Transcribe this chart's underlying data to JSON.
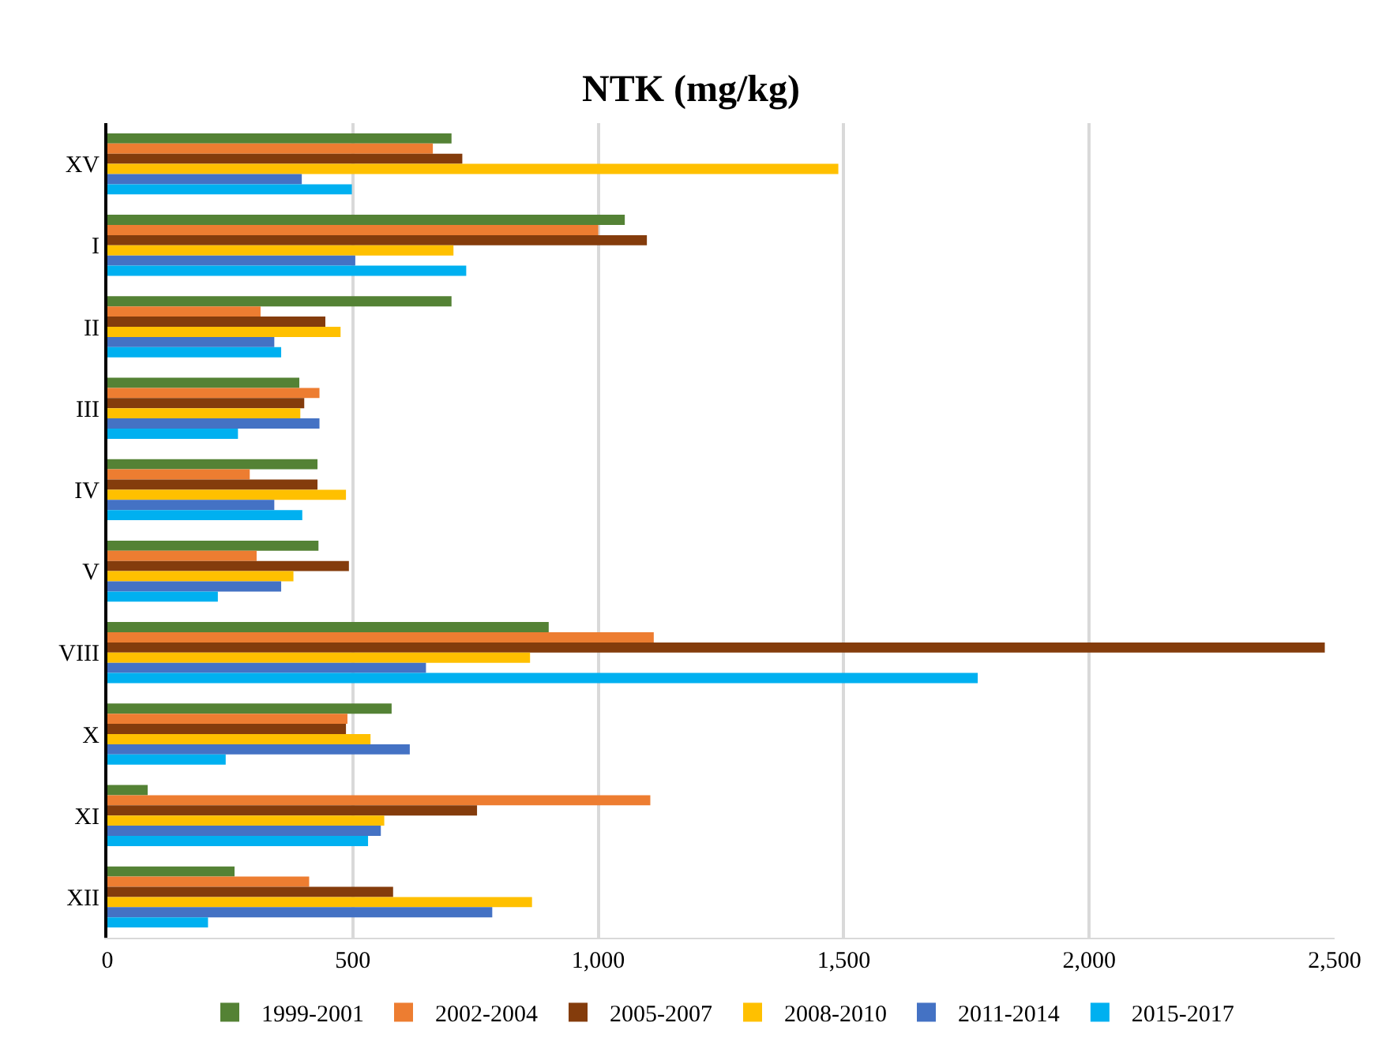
{
  "chart_data": {
    "type": "bar",
    "orientation": "horizontal",
    "title": "NTK (mg/kg)",
    "categories": [
      "XV",
      "I",
      "II",
      "III",
      "IV",
      "V",
      "VIII",
      "X",
      "XI",
      "XII"
    ],
    "series": [
      {
        "name": "1999-2001",
        "color": "#548235",
        "values": [
          701,
          1054,
          701,
          391,
          428,
          430,
          899,
          579,
          82,
          259
        ]
      },
      {
        "name": "2002-2004",
        "color": "#ed7d31",
        "values": [
          663,
          1000,
          312,
          432,
          290,
          304,
          1113,
          489,
          1106,
          411
        ]
      },
      {
        "name": "2005-2007",
        "color": "#843c0c",
        "values": [
          723,
          1099,
          444,
          401,
          428,
          492,
          2480,
          486,
          753,
          582
        ]
      },
      {
        "name": "2008-2010",
        "color": "#ffc000",
        "values": [
          1489,
          705,
          475,
          393,
          486,
          379,
          861,
          536,
          564,
          865
        ]
      },
      {
        "name": "2011-2014",
        "color": "#4472c4",
        "values": [
          396,
          505,
          340,
          432,
          340,
          354,
          649,
          616,
          557,
          784
        ]
      },
      {
        "name": "2015-2017",
        "color": "#00b0f0",
        "values": [
          498,
          731,
          354,
          266,
          397,
          225,
          1773,
          241,
          531,
          205
        ]
      }
    ],
    "xlim": [
      0,
      2500
    ],
    "xticks": [
      0,
      {
        "value": 500,
        "label": "500"
      },
      {
        "value": 1000,
        "label": "1,000"
      },
      {
        "value": 1500,
        "label": "1,500"
      },
      {
        "value": 2000,
        "label": "2,000"
      },
      {
        "value": 2500,
        "label": "2,500"
      }
    ],
    "grid": "x",
    "legend": "bottom"
  }
}
